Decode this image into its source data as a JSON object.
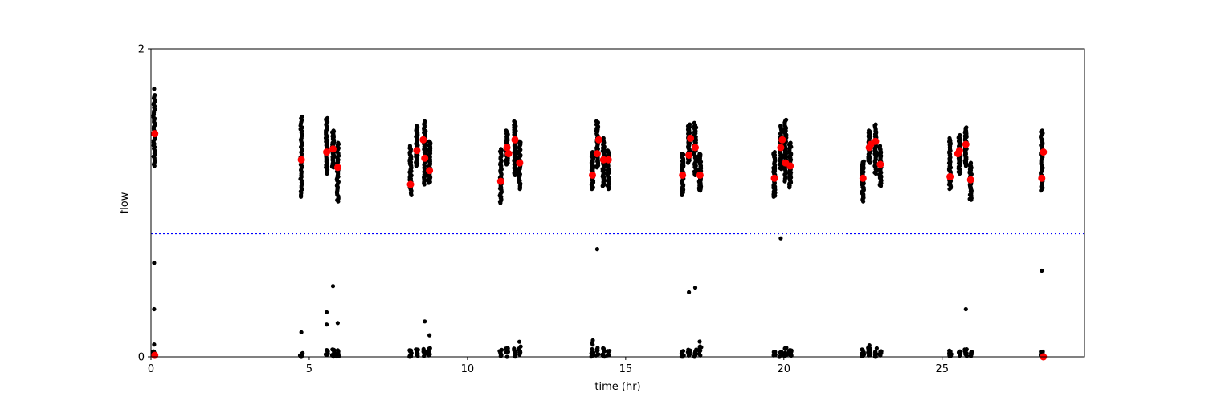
{
  "chart_data": {
    "type": "scatter",
    "xlabel": "time (hr)",
    "ylabel": "flow",
    "xlim": [
      0,
      29.5
    ],
    "ylim": [
      0,
      2
    ],
    "x_ticks": [
      0,
      5,
      10,
      15,
      20,
      25
    ],
    "y_ticks": [
      0,
      2
    ],
    "grid": false,
    "threshold_line": {
      "y": 0.8,
      "color": "#0000ff",
      "style": "dotted"
    },
    "colors": {
      "raw": "#000000",
      "mean": "#ff0000"
    },
    "series": [
      {
        "marker": "raw",
        "clusters": [
          {
            "x": 0.1,
            "high": [
              1.24,
              1.7
            ],
            "low": [
              0.0,
              0.05
            ],
            "extras": [
              0.08,
              0.31,
              0.61,
              1.74
            ]
          },
          {
            "x": 4.75,
            "high": [
              1.04,
              1.56
            ],
            "low": [
              0.0,
              0.03
            ],
            "extras": [
              0.16,
              0.0
            ]
          },
          {
            "x": 5.55,
            "high": [
              1.19,
              1.55
            ],
            "low": [
              0.0,
              0.06
            ],
            "extras": [
              0.21,
              0.29
            ]
          },
          {
            "x": 5.75,
            "high": [
              1.23,
              1.47
            ],
            "low": [
              0.0,
              0.06
            ],
            "extras": [
              0.46
            ]
          },
          {
            "x": 5.9,
            "high": [
              1.01,
              1.39
            ],
            "low": [
              0.0,
              0.05
            ],
            "extras": [
              0.22
            ]
          },
          {
            "x": 8.2,
            "high": [
              1.05,
              1.37
            ],
            "low": [
              0.0,
              0.05
            ],
            "extras": []
          },
          {
            "x": 8.4,
            "high": [
              1.24,
              1.5
            ],
            "low": [
              0.0,
              0.05
            ],
            "extras": []
          },
          {
            "x": 8.65,
            "high": [
              1.12,
              1.53
            ],
            "low": [
              0.0,
              0.06
            ],
            "extras": [
              0.23
            ]
          },
          {
            "x": 8.8,
            "high": [
              1.13,
              1.4
            ],
            "low": [
              0.0,
              0.06
            ],
            "extras": [
              0.14
            ]
          },
          {
            "x": 11.05,
            "high": [
              1.0,
              1.35
            ],
            "low": [
              0.0,
              0.05
            ],
            "extras": []
          },
          {
            "x": 11.25,
            "high": [
              1.25,
              1.47
            ],
            "low": [
              0.0,
              0.06
            ],
            "extras": []
          },
          {
            "x": 11.5,
            "high": [
              1.18,
              1.53
            ],
            "low": [
              0.0,
              0.06
            ],
            "extras": []
          },
          {
            "x": 11.65,
            "high": [
              1.09,
              1.4
            ],
            "low": [
              0.0,
              0.1
            ],
            "extras": []
          },
          {
            "x": 13.95,
            "high": [
              1.09,
              1.33
            ],
            "low": [
              0.0,
              0.12
            ],
            "extras": []
          },
          {
            "x": 14.1,
            "high": [
              1.23,
              1.53
            ],
            "low": [
              0.0,
              0.08
            ],
            "extras": [
              0.7
            ]
          },
          {
            "x": 14.3,
            "high": [
              1.11,
              1.42
            ],
            "low": [
              0.0,
              0.06
            ],
            "extras": []
          },
          {
            "x": 14.45,
            "high": [
              1.09,
              1.34
            ],
            "low": [
              0.0,
              0.04
            ],
            "extras": []
          },
          {
            "x": 16.8,
            "high": [
              1.05,
              1.32
            ],
            "low": [
              0.0,
              0.04
            ],
            "extras": []
          },
          {
            "x": 17.0,
            "high": [
              1.26,
              1.51
            ],
            "low": [
              0.0,
              0.05
            ],
            "extras": [
              0.42
            ]
          },
          {
            "x": 17.2,
            "high": [
              1.18,
              1.52
            ],
            "low": [
              0.0,
              0.05
            ],
            "extras": [
              0.45
            ]
          },
          {
            "x": 17.35,
            "high": [
              1.08,
              1.32
            ],
            "low": [
              0.0,
              0.1
            ],
            "extras": []
          },
          {
            "x": 19.7,
            "high": [
              1.04,
              1.33
            ],
            "low": [
              0.0,
              0.04
            ],
            "extras": []
          },
          {
            "x": 19.9,
            "high": [
              1.22,
              1.5
            ],
            "low": [
              0.0,
              0.04
            ],
            "extras": [
              0.77
            ]
          },
          {
            "x": 20.05,
            "high": [
              1.14,
              1.54
            ],
            "low": [
              0.0,
              0.06
            ],
            "extras": []
          },
          {
            "x": 20.2,
            "high": [
              1.1,
              1.39
            ],
            "low": [
              0.0,
              0.05
            ],
            "extras": []
          },
          {
            "x": 22.5,
            "high": [
              1.01,
              1.27
            ],
            "low": [
              0.0,
              0.06
            ],
            "extras": []
          },
          {
            "x": 22.7,
            "high": [
              1.26,
              1.47
            ],
            "low": [
              0.0,
              0.08
            ],
            "extras": []
          },
          {
            "x": 22.9,
            "high": [
              1.19,
              1.51
            ],
            "low": [
              0.0,
              0.06
            ],
            "extras": []
          },
          {
            "x": 23.05,
            "high": [
              1.11,
              1.37
            ],
            "low": [
              0.0,
              0.04
            ],
            "extras": []
          },
          {
            "x": 25.25,
            "high": [
              1.09,
              1.42
            ],
            "low": [
              0.0,
              0.04
            ],
            "extras": []
          },
          {
            "x": 25.55,
            "high": [
              1.19,
              1.44
            ],
            "low": [
              0.0,
              0.04
            ],
            "extras": []
          },
          {
            "x": 25.75,
            "high": [
              1.24,
              1.49
            ],
            "low": [
              0.0,
              0.05
            ],
            "extras": [
              0.31
            ]
          },
          {
            "x": 25.9,
            "high": [
              1.02,
              1.26
            ],
            "low": [
              0.0,
              0.04
            ],
            "extras": []
          },
          {
            "x": 28.15,
            "high": [
              1.08,
              1.47
            ],
            "low": [
              0.0,
              0.04
            ],
            "extras": [
              0.56
            ]
          }
        ]
      },
      {
        "marker": "mean",
        "points": [
          [
            0.12,
            1.45
          ],
          [
            4.75,
            1.28
          ],
          [
            5.55,
            1.33
          ],
          [
            5.75,
            1.35
          ],
          [
            5.9,
            1.23
          ],
          [
            8.2,
            1.12
          ],
          [
            8.4,
            1.34
          ],
          [
            8.6,
            1.41
          ],
          [
            8.65,
            1.29
          ],
          [
            8.8,
            1.21
          ],
          [
            11.05,
            1.14
          ],
          [
            11.25,
            1.36
          ],
          [
            11.3,
            1.32
          ],
          [
            11.5,
            1.41
          ],
          [
            11.65,
            1.26
          ],
          [
            13.95,
            1.18
          ],
          [
            14.1,
            1.32
          ],
          [
            14.15,
            1.41
          ],
          [
            14.3,
            1.28
          ],
          [
            14.45,
            1.28
          ],
          [
            16.8,
            1.18
          ],
          [
            17.0,
            1.31
          ],
          [
            17.05,
            1.42
          ],
          [
            17.2,
            1.36
          ],
          [
            17.35,
            1.18
          ],
          [
            19.7,
            1.16
          ],
          [
            19.9,
            1.36
          ],
          [
            19.95,
            1.41
          ],
          [
            20.05,
            1.26
          ],
          [
            20.2,
            1.24
          ],
          [
            22.5,
            1.16
          ],
          [
            22.7,
            1.36
          ],
          [
            22.75,
            1.38
          ],
          [
            22.9,
            1.4
          ],
          [
            23.05,
            1.25
          ],
          [
            25.25,
            1.17
          ],
          [
            25.5,
            1.32
          ],
          [
            25.55,
            1.34
          ],
          [
            25.75,
            1.38
          ],
          [
            25.9,
            1.15
          ],
          [
            28.15,
            1.16
          ],
          [
            28.2,
            1.33
          ],
          [
            0.12,
            0.01
          ],
          [
            28.2,
            0.0
          ]
        ]
      }
    ]
  }
}
